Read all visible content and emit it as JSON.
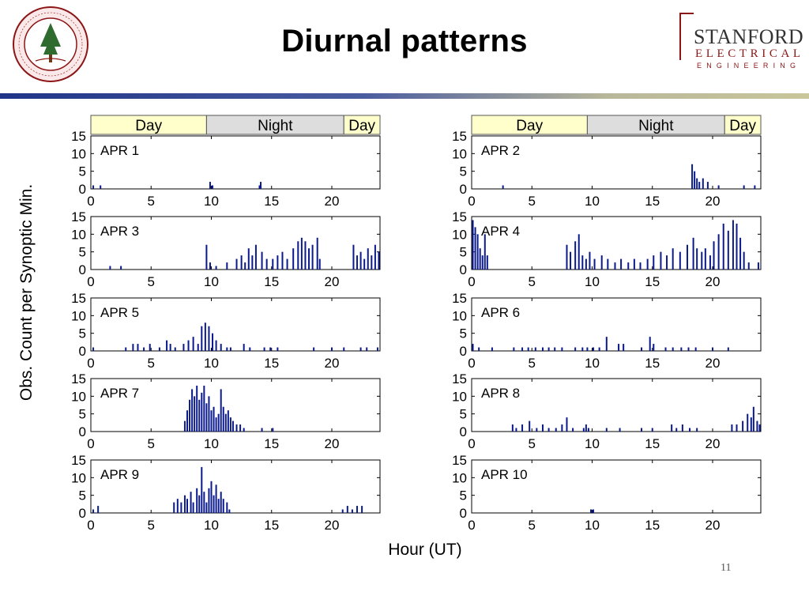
{
  "slide": {
    "title": "Diurnal patterns",
    "page_number": "11",
    "seal_text": "LELAND STANFORD JUNIOR UNIVERSITY · ORGANIZED 1891",
    "logo": {
      "line1": "STANFORD",
      "line2": "ELECTRICAL",
      "line3": "ENGINEERING"
    },
    "colors": {
      "rule_start": "#1f3488",
      "rule_end": "#c9c69a",
      "brand": "#8c1515",
      "bars": "#0a1a8c",
      "day_band": "#ffffcc",
      "night_band": "#dddddd"
    }
  },
  "chart_data": {
    "type": "bar",
    "ylabel": "Obs. Count per Synoptic Min.",
    "xlabel": "Hour (UT)",
    "xlim": [
      0,
      24
    ],
    "ylim": [
      0,
      15
    ],
    "xticks": [
      0,
      5,
      10,
      15,
      20
    ],
    "yticks": [
      0,
      5,
      10,
      15
    ],
    "time_bands": [
      {
        "label": "Day",
        "from": 0,
        "to": 9.6
      },
      {
        "label": "Night",
        "from": 9.6,
        "to": 21
      },
      {
        "label": "Day",
        "from": 21,
        "to": 24
      }
    ],
    "panels": [
      {
        "label": "APR 1",
        "bars": [
          [
            0.2,
            1
          ],
          [
            0.8,
            1
          ],
          [
            9.9,
            2
          ],
          [
            10.1,
            1
          ],
          [
            14.0,
            1
          ],
          [
            14.1,
            2
          ]
        ]
      },
      {
        "label": "APR 2",
        "bars": [
          [
            2.6,
            1
          ],
          [
            18.3,
            7
          ],
          [
            18.5,
            5
          ],
          [
            18.7,
            3
          ],
          [
            18.9,
            2
          ],
          [
            19.2,
            3
          ],
          [
            19.6,
            2
          ],
          [
            20.5,
            1
          ],
          [
            22.6,
            1
          ],
          [
            23.5,
            1
          ]
        ]
      },
      {
        "label": "APR 3",
        "bars": [
          [
            1.6,
            1
          ],
          [
            2.5,
            1
          ],
          [
            9.6,
            7
          ],
          [
            9.9,
            2
          ],
          [
            10.4,
            1
          ],
          [
            11.3,
            2
          ],
          [
            12.1,
            3
          ],
          [
            12.5,
            4
          ],
          [
            12.8,
            2
          ],
          [
            13.1,
            6
          ],
          [
            13.4,
            4
          ],
          [
            13.7,
            7
          ],
          [
            14.2,
            5
          ],
          [
            14.6,
            3
          ],
          [
            15.1,
            3
          ],
          [
            15.5,
            4
          ],
          [
            15.9,
            5
          ],
          [
            16.3,
            3
          ],
          [
            16.8,
            6
          ],
          [
            17.2,
            8
          ],
          [
            17.5,
            9
          ],
          [
            17.8,
            8
          ],
          [
            18.1,
            6
          ],
          [
            18.4,
            7
          ],
          [
            18.8,
            9
          ],
          [
            19.0,
            3
          ],
          [
            21.8,
            7
          ],
          [
            22.1,
            4
          ],
          [
            22.4,
            5
          ],
          [
            22.7,
            3
          ],
          [
            23.0,
            6
          ],
          [
            23.3,
            4
          ],
          [
            23.6,
            7
          ],
          [
            23.9,
            5
          ]
        ]
      },
      {
        "label": "APR 4",
        "bars": [
          [
            0.1,
            14
          ],
          [
            0.3,
            12
          ],
          [
            0.5,
            10
          ],
          [
            0.7,
            6
          ],
          [
            0.9,
            4
          ],
          [
            1.1,
            10
          ],
          [
            1.3,
            4
          ],
          [
            7.9,
            7
          ],
          [
            8.2,
            5
          ],
          [
            8.6,
            8
          ],
          [
            8.9,
            10
          ],
          [
            9.2,
            4
          ],
          [
            9.5,
            3
          ],
          [
            9.8,
            5
          ],
          [
            10.2,
            3
          ],
          [
            10.8,
            4
          ],
          [
            11.3,
            3
          ],
          [
            11.9,
            2
          ],
          [
            12.4,
            3
          ],
          [
            13.0,
            2
          ],
          [
            13.5,
            3
          ],
          [
            14.0,
            2
          ],
          [
            14.6,
            3
          ],
          [
            15.1,
            4
          ],
          [
            15.7,
            5
          ],
          [
            16.2,
            4
          ],
          [
            16.7,
            6
          ],
          [
            17.3,
            5
          ],
          [
            17.9,
            7
          ],
          [
            18.4,
            9
          ],
          [
            18.7,
            6
          ],
          [
            19.1,
            5
          ],
          [
            19.4,
            6
          ],
          [
            19.8,
            4
          ],
          [
            20.1,
            8
          ],
          [
            20.5,
            10
          ],
          [
            20.9,
            13
          ],
          [
            21.3,
            11
          ],
          [
            21.7,
            14
          ],
          [
            22.0,
            13
          ],
          [
            22.3,
            9
          ],
          [
            22.6,
            5
          ],
          [
            23.0,
            2
          ],
          [
            23.8,
            2
          ]
        ]
      },
      {
        "label": "APR 5",
        "bars": [
          [
            0.2,
            1
          ],
          [
            2.9,
            1
          ],
          [
            3.5,
            2
          ],
          [
            3.9,
            2
          ],
          [
            4.4,
            1
          ],
          [
            4.9,
            2
          ],
          [
            5.7,
            1
          ],
          [
            6.3,
            3
          ],
          [
            6.6,
            2
          ],
          [
            7.0,
            1
          ],
          [
            7.7,
            2
          ],
          [
            8.1,
            3
          ],
          [
            8.5,
            4
          ],
          [
            8.9,
            2
          ],
          [
            9.2,
            7
          ],
          [
            9.5,
            8
          ],
          [
            9.8,
            7
          ],
          [
            10.1,
            5
          ],
          [
            10.4,
            3
          ],
          [
            10.8,
            2
          ],
          [
            11.3,
            1
          ],
          [
            11.6,
            1
          ],
          [
            12.7,
            2
          ],
          [
            13.2,
            1
          ],
          [
            14.4,
            1
          ],
          [
            14.9,
            1
          ],
          [
            15.5,
            1
          ],
          [
            18.5,
            1
          ],
          [
            20.0,
            1
          ],
          [
            21.0,
            1
          ],
          [
            22.4,
            1
          ],
          [
            22.9,
            1
          ],
          [
            23.8,
            1
          ]
        ]
      },
      {
        "label": "APR 6",
        "bars": [
          [
            0.1,
            2
          ],
          [
            0.6,
            1
          ],
          [
            1.7,
            1
          ],
          [
            3.5,
            1
          ],
          [
            4.2,
            1
          ],
          [
            4.7,
            1
          ],
          [
            5.3,
            1
          ],
          [
            5.9,
            1
          ],
          [
            6.4,
            1
          ],
          [
            6.9,
            1
          ],
          [
            7.5,
            1
          ],
          [
            8.6,
            1
          ],
          [
            9.2,
            1
          ],
          [
            9.6,
            1
          ],
          [
            10.1,
            1
          ],
          [
            10.6,
            1
          ],
          [
            11.2,
            4
          ],
          [
            12.2,
            2
          ],
          [
            12.6,
            2
          ],
          [
            14.1,
            1
          ],
          [
            14.8,
            4
          ],
          [
            15.1,
            2
          ],
          [
            16.1,
            1
          ],
          [
            16.7,
            1
          ],
          [
            17.4,
            1
          ],
          [
            18.0,
            1
          ],
          [
            18.6,
            1
          ],
          [
            20.0,
            1
          ],
          [
            21.3,
            1
          ]
        ]
      },
      {
        "label": "APR 7",
        "bars": [
          [
            7.8,
            3
          ],
          [
            8.0,
            6
          ],
          [
            8.2,
            9
          ],
          [
            8.4,
            12
          ],
          [
            8.6,
            10
          ],
          [
            8.8,
            13
          ],
          [
            9.0,
            9
          ],
          [
            9.2,
            11
          ],
          [
            9.4,
            13
          ],
          [
            9.6,
            8
          ],
          [
            9.8,
            10
          ],
          [
            10.0,
            6
          ],
          [
            10.2,
            7
          ],
          [
            10.4,
            4
          ],
          [
            10.6,
            5
          ],
          [
            10.8,
            12
          ],
          [
            11.0,
            7
          ],
          [
            11.2,
            5
          ],
          [
            11.4,
            6
          ],
          [
            11.6,
            4
          ],
          [
            11.8,
            3
          ],
          [
            12.1,
            2
          ],
          [
            12.4,
            2
          ],
          [
            12.7,
            1
          ],
          [
            14.2,
            1
          ],
          [
            15.1,
            1
          ]
        ]
      },
      {
        "label": "APR 8",
        "bars": [
          [
            3.4,
            2
          ],
          [
            3.7,
            1
          ],
          [
            4.2,
            2
          ],
          [
            4.8,
            3
          ],
          [
            5.4,
            1
          ],
          [
            5.9,
            2
          ],
          [
            6.4,
            1
          ],
          [
            7.0,
            1
          ],
          [
            7.5,
            2
          ],
          [
            7.9,
            4
          ],
          [
            8.4,
            1
          ],
          [
            9.3,
            1
          ],
          [
            9.5,
            2
          ],
          [
            9.7,
            1
          ],
          [
            11.2,
            1
          ],
          [
            12.3,
            1
          ],
          [
            14.1,
            1
          ],
          [
            15.0,
            1
          ],
          [
            16.6,
            2
          ],
          [
            17.0,
            1
          ],
          [
            17.5,
            2
          ],
          [
            18.1,
            1
          ],
          [
            18.7,
            1
          ],
          [
            21.6,
            2
          ],
          [
            22.0,
            2
          ],
          [
            22.5,
            3
          ],
          [
            22.9,
            5
          ],
          [
            23.2,
            4
          ],
          [
            23.4,
            7
          ],
          [
            23.7,
            3
          ],
          [
            23.9,
            2
          ]
        ]
      },
      {
        "label": "APR 9",
        "bars": [
          [
            0.2,
            1
          ],
          [
            0.6,
            2
          ],
          [
            6.9,
            3
          ],
          [
            7.2,
            4
          ],
          [
            7.5,
            3
          ],
          [
            7.8,
            5
          ],
          [
            8.0,
            4
          ],
          [
            8.3,
            6
          ],
          [
            8.5,
            3
          ],
          [
            8.8,
            7
          ],
          [
            9.0,
            5
          ],
          [
            9.2,
            13
          ],
          [
            9.4,
            6
          ],
          [
            9.6,
            3
          ],
          [
            9.8,
            7
          ],
          [
            10.0,
            9
          ],
          [
            10.2,
            5
          ],
          [
            10.4,
            8
          ],
          [
            10.6,
            4
          ],
          [
            10.8,
            6
          ],
          [
            11.0,
            4
          ],
          [
            11.3,
            3
          ],
          [
            11.5,
            1
          ],
          [
            20.9,
            1
          ],
          [
            21.3,
            2
          ],
          [
            21.7,
            1
          ],
          [
            22.1,
            2
          ],
          [
            22.5,
            2
          ]
        ]
      },
      {
        "label": "APR 10",
        "bars": [
          [
            9.9,
            1
          ],
          [
            10.1,
            1
          ]
        ]
      }
    ]
  }
}
